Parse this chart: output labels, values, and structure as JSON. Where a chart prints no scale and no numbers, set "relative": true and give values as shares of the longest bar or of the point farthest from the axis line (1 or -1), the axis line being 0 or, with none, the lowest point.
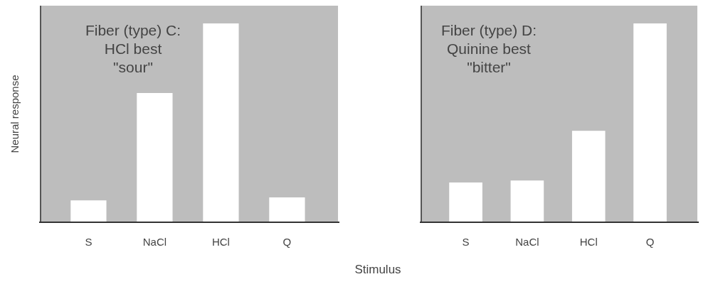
{
  "chart_data": [
    {
      "type": "bar",
      "relative": true,
      "title": "Fiber (type) C:",
      "subtitle": "HCl best",
      "annotations": [
        "\"sour\""
      ],
      "ylabel": "Neural response",
      "xlabel": "Stimulus",
      "categories": [
        "S",
        "NaCl",
        "HCl",
        "Q"
      ],
      "values": [
        0.11,
        0.65,
        1,
        0.125
      ],
      "color": "#ffffff"
    },
    {
      "type": "bar",
      "relative": true,
      "title": "Fiber (type) D:",
      "subtitle": "Quinine best",
      "annotations": [
        "\"bitter\""
      ],
      "categories": [
        "S",
        "NaCl",
        "HCl",
        "Q"
      ],
      "values": [
        0.2,
        0.21,
        0.46,
        1
      ],
      "color": "#ffffff"
    }
  ]
}
